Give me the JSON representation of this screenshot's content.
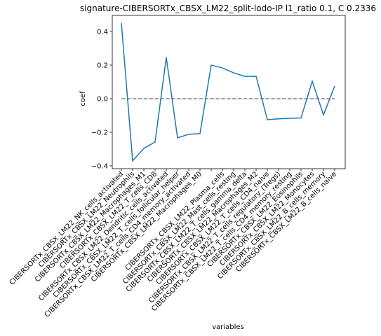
{
  "chart_data": {
    "type": "line",
    "title": "signature-CIBERSORTx_CBSX_LM22_split-lodo-IP l1_ratio 0.1, C 0.2336",
    "xlabel": "variables",
    "ylabel": "coef",
    "categories": [
      "CIBERSORTx_CBSX_LM22_NK_cells_activated",
      "CIBERSORTx_CBSX_LM22_Neutrophils",
      "CIBERSORTx_CBSX_LM22_Macrophages_M1",
      "CIBERSORTx_CBSX_LM22_T_cells_CD8",
      "CIBERSORTx_CBSX_LM22_Dendritic_cells_activated",
      "CIBERSORTx_CBSX_LM22_T_cells_follicular_helper",
      "CIBERSORTx_CBSX_LM22_T_cells_CD4_memory_activated",
      "CIBERSORTx_CBSX_LM22_Macrophages_M0",
      null,
      "CIBERSORTx_CBSX_LM22_Plasma_cells",
      "CIBERSORTx_CBSX_LM22_Mast_cells_resting",
      "CIBERSORTx_CBSX_LM22_T_cells_gamma_delta",
      "CIBERSORTx_CBSX_LM22_Macrophages_M2",
      "CIBERSORTx_CBSX_LM22_T_cells_CD4_naive",
      "CIBERSORTx_CBSX_LM22_T_cells_regulatory_(Tregs)",
      "CIBERSORTx_CBSX_LM22_T_cells_CD4_memory_resting",
      "CIBERSORTx_CBSX_LM22_Eosinophils",
      "CIBERSORTx_CBSX_LM22_Monocytes",
      "CIBERSORTx_CBSX_LM22_B_cells_memory",
      "CIBERSORTx_CBSX_LM22_B_cells_naive"
    ],
    "values": [
      0.45,
      -0.37,
      -0.296,
      -0.258,
      0.246,
      -0.233,
      -0.212,
      -0.208,
      0.2,
      0.183,
      0.154,
      0.133,
      0.133,
      -0.125,
      -0.12,
      -0.117,
      -0.115,
      0.104,
      -0.096,
      0.075
    ],
    "color": "#1f77b4",
    "hline": 0,
    "hline_color": "#808080",
    "ylim": [
      -0.417,
      0.496
    ],
    "yticks": [
      {
        "value": -0.4,
        "label": "−0.4"
      },
      {
        "value": -0.2,
        "label": "−0.2"
      },
      {
        "value": 0,
        "label": "0.0"
      },
      0.2,
      0.4
    ]
  }
}
